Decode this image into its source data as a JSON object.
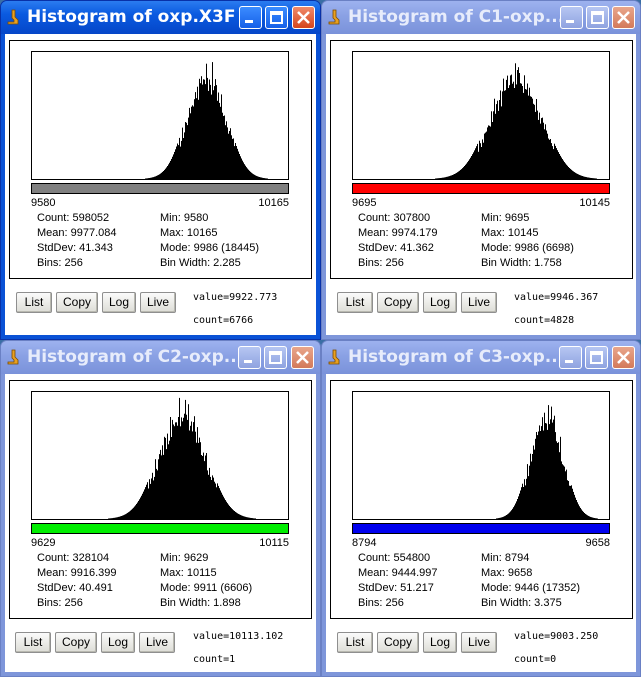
{
  "windows": [
    {
      "title": "Histogram of oxp.X3F",
      "active": true,
      "bar_color": "#808080",
      "range_min": "9580",
      "range_max": "10165",
      "stats": {
        "count": "Count: 598052",
        "mean": "Mean: 9977.084",
        "stddev": "StdDev: 41.343",
        "bins": "Bins: 256",
        "min": "Min: 9580",
        "max": "Max: 10165",
        "mode": "Mode: 9986 (18445)",
        "binwidth": "Bin Width: 2.285"
      },
      "value": "value=9922.773",
      "count": "count=6766",
      "hist": {
        "center": 0.68,
        "sigma": 0.072,
        "peak": 0.97
      }
    },
    {
      "title": "Histogram of C1-oxp...",
      "active": false,
      "bar_color": "#ff0000",
      "range_min": "9695",
      "range_max": "10145",
      "stats": {
        "count": "Count: 307800",
        "mean": "Mean: 9974.179",
        "stddev": "StdDev: 41.362",
        "bins": "Bins: 256",
        "min": "Min: 9695",
        "max": "Max: 10145",
        "mode": "Mode: 9986 (6698)",
        "binwidth": "Bin Width: 1.758"
      },
      "value": "value=9946.367",
      "count": "count=4828",
      "hist": {
        "center": 0.635,
        "sigma": 0.095,
        "peak": 0.97
      }
    },
    {
      "title": "Histogram of C2-oxp...",
      "active": false,
      "bar_color": "#00ee00",
      "range_min": "9629",
      "range_max": "10115",
      "stats": {
        "count": "Count: 328104",
        "mean": "Mean: 9916.399",
        "stddev": "StdDev: 40.491",
        "bins": "Bins: 256",
        "min": "Min: 9629",
        "max": "Max: 10115",
        "mode": "Mode: 9911 (6606)",
        "binwidth": "Bin Width: 1.898"
      },
      "value": "value=10113.102",
      "count": "count=1",
      "hist": {
        "center": 0.585,
        "sigma": 0.087,
        "peak": 0.98
      }
    },
    {
      "title": "Histogram of C3-oxp...",
      "active": false,
      "bar_color": "#0000ee",
      "range_min": "8794",
      "range_max": "9658",
      "stats": {
        "count": "Count: 554800",
        "mean": "Mean: 9444.997",
        "stddev": "StdDev: 51.217",
        "bins": "Bins: 256",
        "min": "Min: 8794",
        "max": "Max: 9658",
        "mode": "Mode: 9446 (17352)",
        "binwidth": "Bin Width: 3.375"
      },
      "value": "value=9003.250",
      "count": "count=0",
      "hist": {
        "center": 0.755,
        "sigma": 0.06,
        "peak": 0.97
      }
    }
  ],
  "buttons": {
    "list": "List",
    "copy": "Copy",
    "log": "Log",
    "live": "Live"
  },
  "colors": {
    "titlebar_active": "#0a52d6",
    "titlebar_inactive": "#8aa1e4",
    "desktop": "#3a6ea5"
  }
}
